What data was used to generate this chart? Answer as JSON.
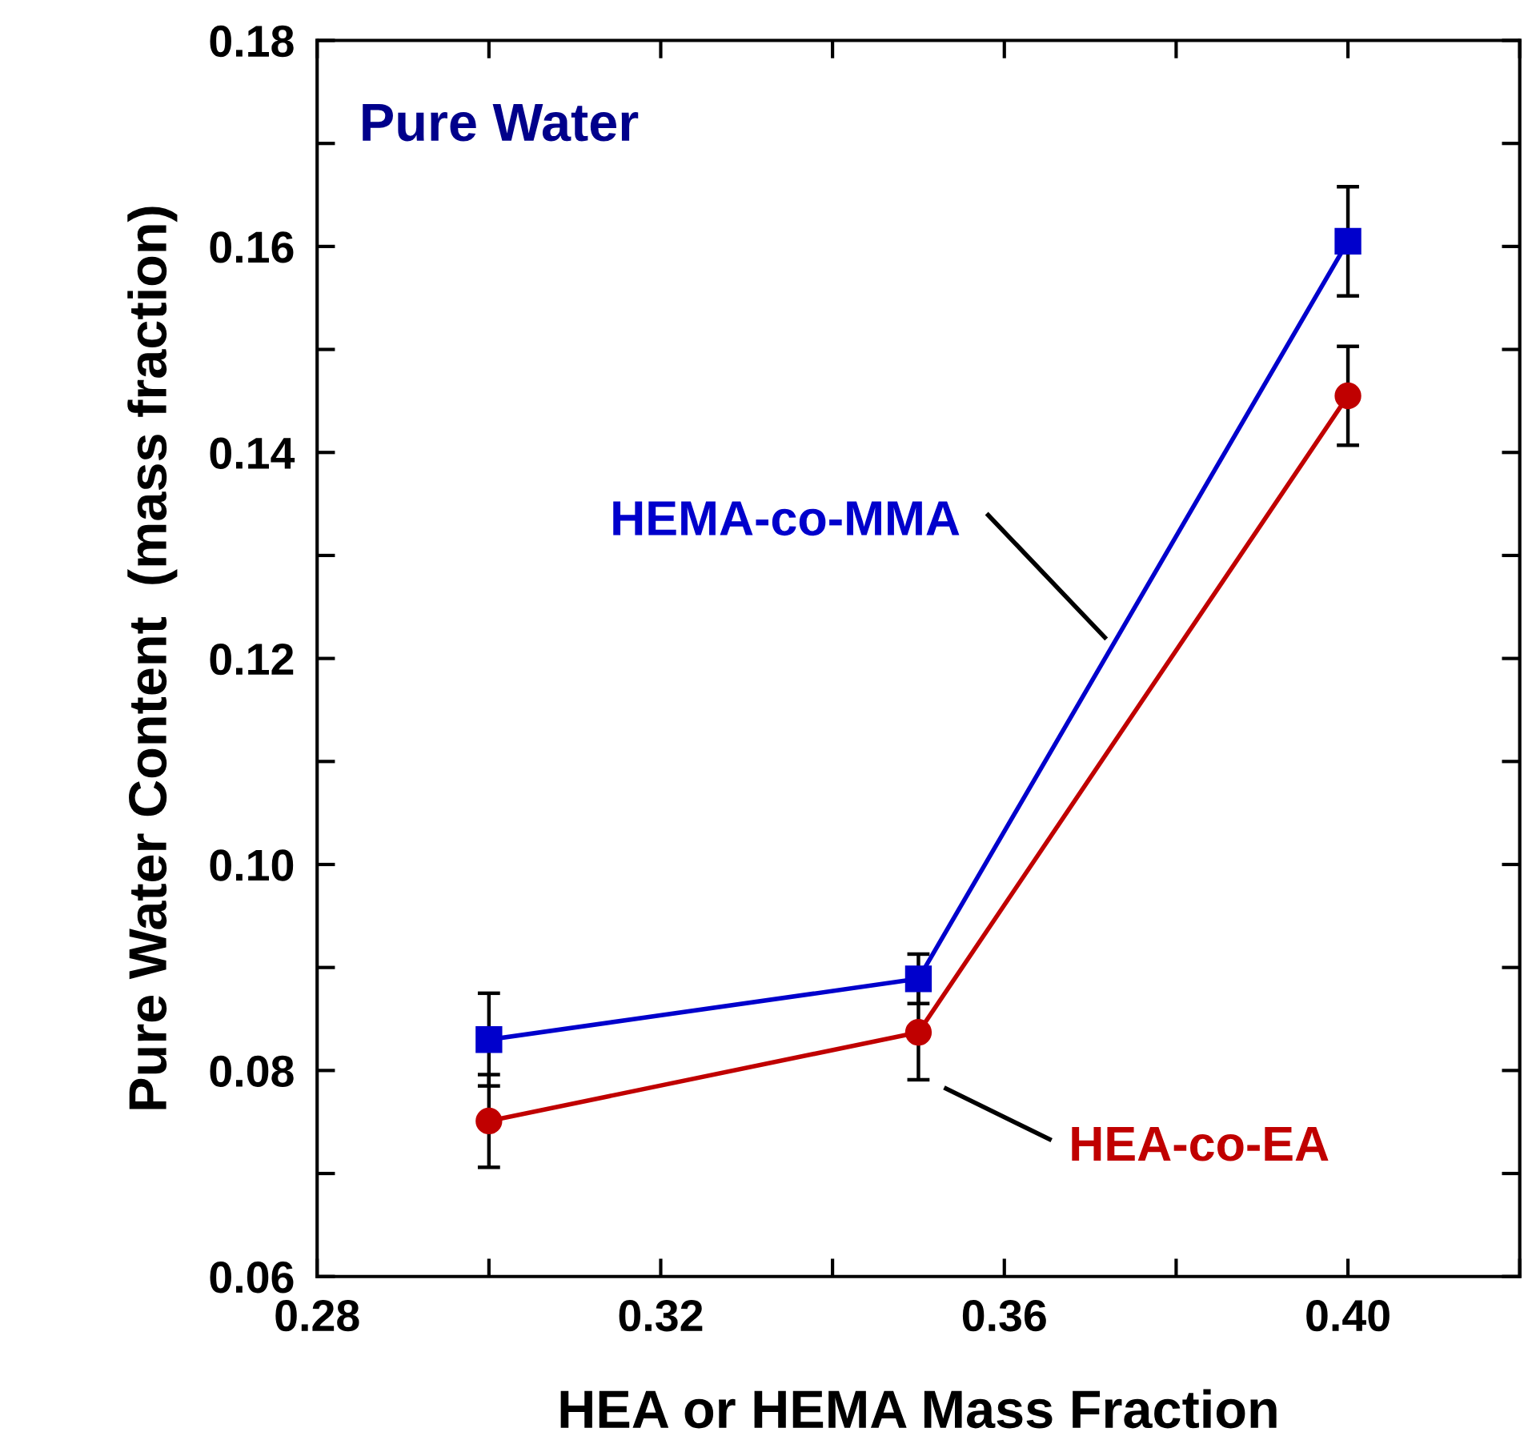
{
  "chart_data": {
    "type": "line",
    "xlabel": "HEA or HEMA Mass Fraction",
    "ylabel": "Pure Water Content  (mass fraction)",
    "annotations": [
      "Pure Water"
    ],
    "x": [
      0.3,
      0.35,
      0.4
    ],
    "series": [
      {
        "name": "HEMA-co-MMA",
        "color": "#0000cc",
        "values": [
          0.083,
          0.0889,
          0.1605
        ],
        "errors": [
          0.0045,
          0.0024,
          0.0053
        ],
        "marker": "square"
      },
      {
        "name": "HEA-co-EA",
        "color": "#c00000",
        "values": [
          0.0751,
          0.0837,
          0.1455
        ],
        "errors": [
          0.0045,
          0.0046,
          0.0048
        ],
        "marker": "circle"
      }
    ],
    "xlim": [
      0.28,
      0.42
    ],
    "xticks": [
      0.28,
      {
        "value": 0.3,
        "label": null
      },
      0.32,
      {
        "value": 0.34,
        "label": null
      },
      0.36,
      {
        "value": 0.38,
        "label": null
      },
      {
        "value": 0.4,
        "label": "0.40"
      },
      {
        "value": 0.42,
        "label": null
      }
    ],
    "ylim": [
      0.06,
      0.18
    ],
    "yticks": [
      0.06,
      {
        "value": 0.07,
        "label": null
      },
      0.08,
      {
        "value": 0.09,
        "label": null
      },
      {
        "value": 0.1,
        "label": "0.10"
      },
      {
        "value": 0.11,
        "label": null
      },
      0.12,
      {
        "value": 0.13,
        "label": null
      },
      0.14,
      {
        "value": 0.15,
        "label": null
      },
      0.16,
      {
        "value": 0.17,
        "label": null
      },
      0.18
    ],
    "grid": false,
    "legend": false,
    "line_style": "solid"
  }
}
